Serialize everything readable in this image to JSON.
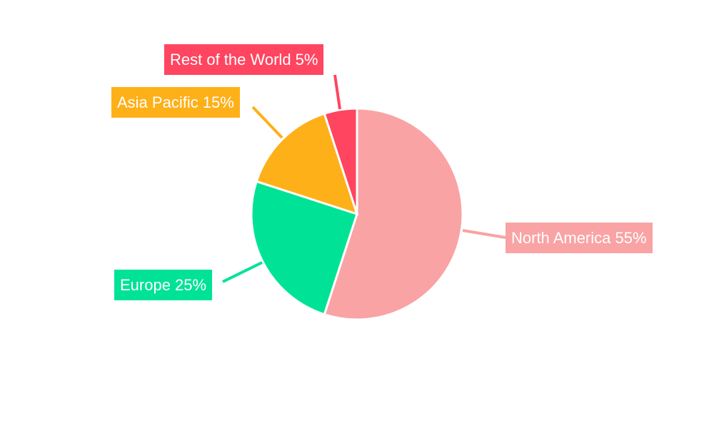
{
  "chart_data": {
    "type": "pie",
    "categories": [
      "North America",
      "Europe",
      "Asia Pacific",
      "Rest of the World"
    ],
    "values": [
      55,
      25,
      15,
      5
    ],
    "data_labels": [
      "North America 55%",
      "Europe 25%",
      "Asia Pacific 15%",
      "Rest of the World 5%"
    ],
    "colors": [
      "#F9A3A4",
      "#00E396",
      "#FEB019",
      "#FF4560"
    ],
    "start_angle": "top, clockwise",
    "legend": "none"
  }
}
